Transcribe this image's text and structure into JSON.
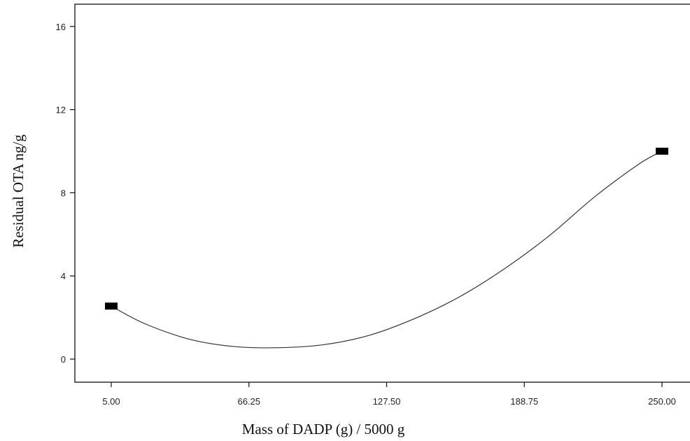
{
  "chart_data": {
    "type": "line",
    "title": "",
    "xlabel": "Mass of DADP (g) / 5000 g",
    "ylabel": "Residual OTA ng/g",
    "xlim": [
      5.0,
      250.0
    ],
    "ylim": [
      -1.1,
      17.0
    ],
    "x_ticks": [
      5.0,
      66.25,
      127.5,
      188.75,
      250.0
    ],
    "x_tick_labels": [
      "5.00",
      "66.25",
      "127.50",
      "188.75",
      "250.00"
    ],
    "y_ticks": [
      0,
      4,
      8,
      12,
      16
    ],
    "y_tick_labels": [
      "0",
      "4",
      "8",
      "12",
      "16"
    ],
    "grid": false,
    "series": [
      {
        "kind": "fitted-curve",
        "x": [
          5.0,
          20.0,
          40.0,
          60.0,
          80.0,
          100.0,
          120.0,
          140.0,
          160.0,
          180.0,
          200.0,
          220.0,
          240.0,
          250.0
        ],
        "y": [
          2.55,
          1.7,
          0.95,
          0.6,
          0.55,
          0.7,
          1.15,
          1.95,
          3.0,
          4.35,
          5.95,
          7.8,
          9.4,
          10.0
        ]
      },
      {
        "kind": "points",
        "x": [
          5.0,
          250.0
        ],
        "y": [
          2.55,
          10.0
        ]
      }
    ]
  }
}
